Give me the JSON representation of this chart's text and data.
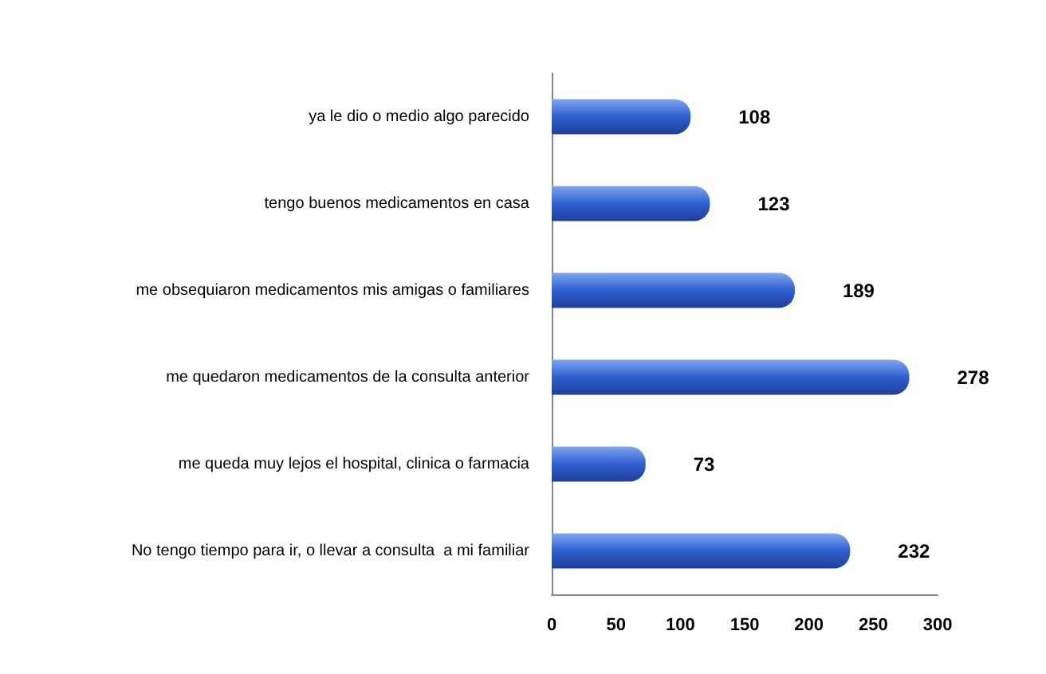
{
  "chart_data": {
    "type": "bar",
    "orientation": "horizontal",
    "categories": [
      "ya le dio o medio algo parecido",
      "tengo buenos medicamentos en casa",
      "me obsequiaron medicamentos mis amigas o familiares",
      "me quedaron medicamentos de la consulta anterior",
      "me queda muy lejos el hospital, clinica o farmacia",
      "No tengo tiempo para ir, o llevar a consulta  a mi familiar"
    ],
    "values": [
      108,
      123,
      189,
      278,
      73,
      232
    ],
    "color": "#2f5fd0",
    "xlim": [
      0,
      300
    ],
    "xticks": [
      0,
      50,
      100,
      150,
      200,
      250,
      300
    ],
    "data_labels": true,
    "grid": false
  }
}
